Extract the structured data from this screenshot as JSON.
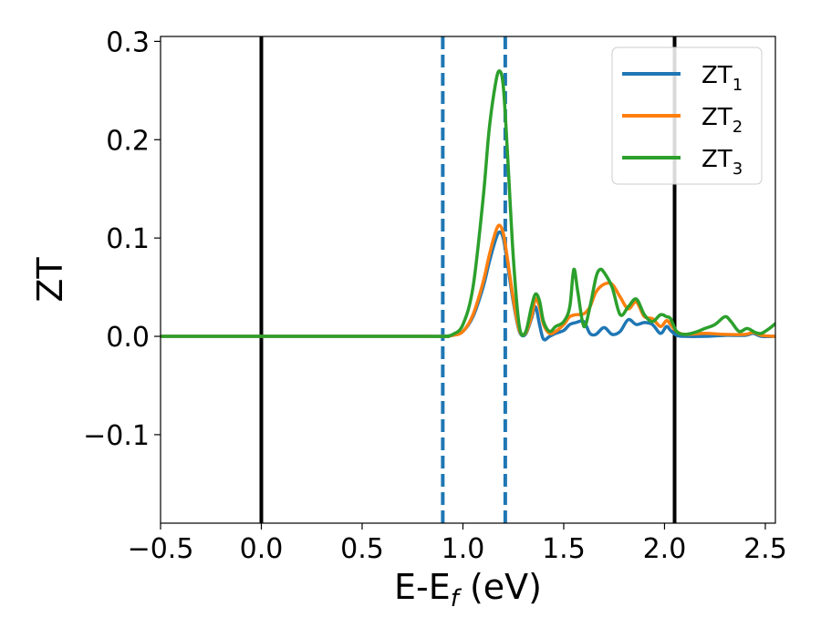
{
  "chart_data": {
    "type": "line",
    "xlabel": "E-E",
    "xlabel_sub": "f",
    "xlabel_unit": " (eV)",
    "ylabel": "ZT",
    "xlim": [
      -0.5,
      2.55
    ],
    "ylim": [
      -0.19,
      0.305
    ],
    "xticks": [
      -0.5,
      0.0,
      0.5,
      1.0,
      1.5,
      2.0,
      2.5
    ],
    "xtick_labels": [
      "−0.5",
      "0.0",
      "0.5",
      "1.0",
      "1.5",
      "2.0",
      "2.5"
    ],
    "yticks": [
      -0.1,
      0.0,
      0.1,
      0.2,
      0.3
    ],
    "ytick_labels": [
      "−0.1",
      "0.0",
      "0.1",
      "0.2",
      "0.3"
    ],
    "grid": false,
    "legend_position": "top-right",
    "vertical_lines": [
      {
        "x": 0.0,
        "style": "solid",
        "color": "#000000"
      },
      {
        "x": 2.05,
        "style": "solid",
        "color": "#000000"
      },
      {
        "x": 0.9,
        "style": "dashed",
        "color": "#1f77b4"
      },
      {
        "x": 1.21,
        "style": "dashed",
        "color": "#1f77b4"
      }
    ],
    "series": [
      {
        "name": "ZT",
        "name_sub": "1",
        "color": "#1f77b4",
        "x": [
          -0.5,
          0.8,
          0.9,
          0.95,
          1.0,
          1.05,
          1.1,
          1.13,
          1.16,
          1.18,
          1.2,
          1.22,
          1.25,
          1.28,
          1.31,
          1.34,
          1.36,
          1.38,
          1.4,
          1.43,
          1.46,
          1.5,
          1.53,
          1.56,
          1.6,
          1.63,
          1.66,
          1.7,
          1.74,
          1.78,
          1.82,
          1.86,
          1.9,
          1.94,
          1.98,
          2.01,
          2.03,
          2.06,
          2.1,
          2.2,
          2.3,
          2.4,
          2.44,
          2.48,
          2.55
        ],
        "y": [
          0,
          0,
          0,
          0.001,
          0.005,
          0.02,
          0.05,
          0.075,
          0.097,
          0.106,
          0.1,
          0.075,
          0.035,
          0.005,
          0.002,
          0.018,
          0.03,
          0.012,
          -0.003,
          0.0,
          0.003,
          0.006,
          0.012,
          0.014,
          0.015,
          0.003,
          0.002,
          0.009,
          0.002,
          0.005,
          0.017,
          0.012,
          0.014,
          0.012,
          0.003,
          0.01,
          0.006,
          0.001,
          0.0,
          0.0,
          0.001,
          0.001,
          0.003,
          0.0,
          0.0
        ]
      },
      {
        "name": "ZT",
        "name_sub": "2",
        "color": "#ff7f0e",
        "x": [
          -0.5,
          0.8,
          0.9,
          0.95,
          1.0,
          1.05,
          1.1,
          1.13,
          1.16,
          1.18,
          1.2,
          1.22,
          1.25,
          1.28,
          1.31,
          1.34,
          1.36,
          1.38,
          1.4,
          1.43,
          1.46,
          1.5,
          1.53,
          1.56,
          1.6,
          1.63,
          1.66,
          1.7,
          1.74,
          1.78,
          1.82,
          1.86,
          1.9,
          1.94,
          1.98,
          2.01,
          2.03,
          2.06,
          2.1,
          2.2,
          2.3,
          2.4,
          2.44,
          2.48,
          2.55
        ],
        "y": [
          0,
          0,
          0,
          0.001,
          0.005,
          0.022,
          0.055,
          0.082,
          0.105,
          0.113,
          0.105,
          0.08,
          0.038,
          0.006,
          0.003,
          0.02,
          0.038,
          0.03,
          0.012,
          0.003,
          0.005,
          0.012,
          0.02,
          0.022,
          0.023,
          0.03,
          0.045,
          0.053,
          0.053,
          0.04,
          0.028,
          0.035,
          0.02,
          0.018,
          0.01,
          0.016,
          0.012,
          0.005,
          0.002,
          0.003,
          0.002,
          0.002,
          0.004,
          0.001,
          0.0
        ]
      },
      {
        "name": "ZT",
        "name_sub": "3",
        "color": "#2ca02c",
        "x": [
          -0.5,
          0.8,
          0.9,
          0.95,
          1.0,
          1.05,
          1.1,
          1.13,
          1.16,
          1.18,
          1.2,
          1.22,
          1.25,
          1.28,
          1.31,
          1.34,
          1.36,
          1.38,
          1.4,
          1.43,
          1.46,
          1.5,
          1.53,
          1.55,
          1.57,
          1.6,
          1.63,
          1.66,
          1.68,
          1.7,
          1.74,
          1.78,
          1.82,
          1.86,
          1.9,
          1.94,
          1.98,
          2.01,
          2.03,
          2.06,
          2.1,
          2.15,
          2.2,
          2.25,
          2.3,
          2.33,
          2.37,
          2.41,
          2.45,
          2.48,
          2.52,
          2.55
        ],
        "y": [
          0,
          0,
          0,
          0.002,
          0.012,
          0.05,
          0.14,
          0.21,
          0.255,
          0.27,
          0.255,
          0.19,
          0.08,
          0.01,
          0.004,
          0.03,
          0.043,
          0.036,
          0.015,
          0.005,
          0.01,
          0.015,
          0.03,
          0.068,
          0.045,
          0.01,
          0.03,
          0.06,
          0.068,
          0.065,
          0.05,
          0.022,
          0.03,
          0.038,
          0.022,
          0.015,
          0.022,
          0.02,
          0.018,
          0.005,
          0.002,
          0.004,
          0.008,
          0.012,
          0.02,
          0.015,
          0.005,
          0.008,
          0.004,
          0.003,
          0.008,
          0.013
        ]
      }
    ]
  }
}
